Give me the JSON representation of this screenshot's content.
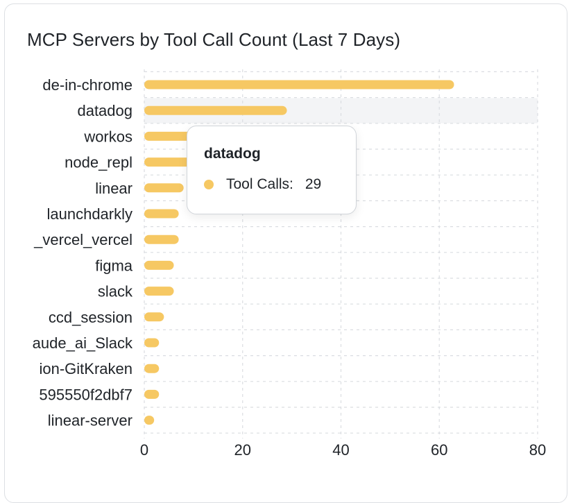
{
  "colors": {
    "bar": "#f6c863",
    "grid": "#dadde1",
    "text": "#1f2328",
    "hover_band": "#f3f4f6"
  },
  "chart_data": {
    "type": "bar",
    "orientation": "horizontal",
    "title": "MCP Servers by Tool Call Count (Last 7 Days)",
    "categories": [
      "de-in-chrome",
      "datadog",
      "workos",
      "node_repl",
      "linear",
      "launchdarkly",
      "_vercel_vercel",
      "figma",
      "slack",
      "ccd_session",
      "aude_ai_Slack",
      "ion-GitKraken",
      "595550f2dbf7",
      "linear-server"
    ],
    "series": [
      {
        "name": "Tool Calls",
        "values": [
          63,
          29,
          11,
          10,
          8,
          7,
          7,
          6,
          6,
          4,
          3,
          3,
          3,
          2
        ]
      }
    ],
    "xlim": [
      0,
      80
    ],
    "xticks": [
      0,
      20,
      40,
      60,
      80
    ],
    "grid": true,
    "highlighted_category": "datadog"
  },
  "tooltip": {
    "title": "datadog",
    "series_label": "Tool Calls:",
    "value": "29"
  }
}
